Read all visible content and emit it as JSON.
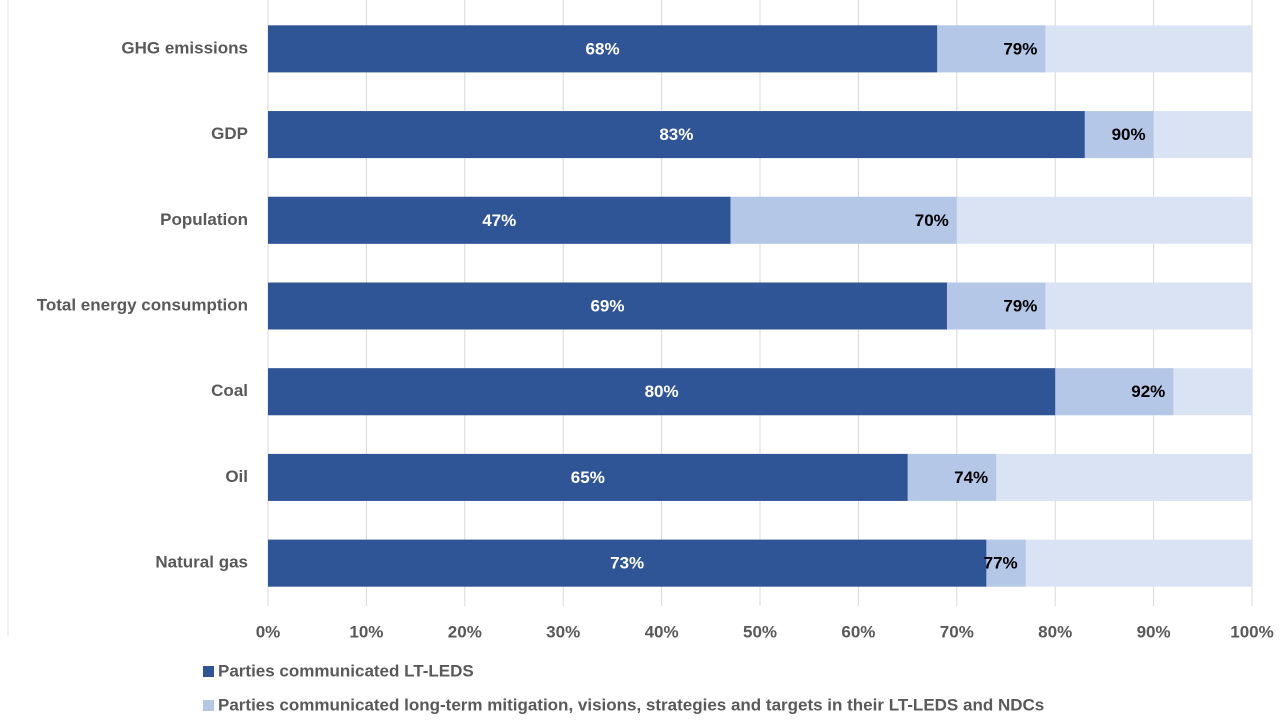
{
  "chart_data": {
    "type": "overlapped-bar",
    "orientation": "horizontal",
    "categories": [
      "GHG emissions",
      "GDP",
      "Population",
      "Total energy consumption",
      "Coal",
      "Oil",
      "Natural gas"
    ],
    "series": [
      {
        "name": "Parties communicated long-term mitigation, visions, strategies and targets in their LT-LEDS and NDCs",
        "color": "#b4c7e7",
        "label_color": "#000000",
        "values": [
          79,
          90,
          70,
          79,
          92,
          74,
          77
        ],
        "value_labels": [
          "79%",
          "90%",
          "70%",
          "79%",
          "92%",
          "74%",
          "77%"
        ]
      },
      {
        "name": "Parties communicated LT-LEDS",
        "color": "#2f5597",
        "label_color": "#ffffff",
        "values": [
          68,
          83,
          47,
          69,
          80,
          65,
          73
        ],
        "value_labels": [
          "68%",
          "83%",
          "47%",
          "69%",
          "80%",
          "65%",
          "73%"
        ]
      }
    ],
    "legend_order": [
      1,
      0
    ],
    "track_color": "#dae3f3",
    "xlim": [
      0,
      100
    ],
    "xticks": [
      {
        "value": 0,
        "label": "0%"
      },
      {
        "value": 10,
        "label": "10%"
      },
      {
        "value": 20,
        "label": "20%"
      },
      {
        "value": 30,
        "label": "30%"
      },
      {
        "value": 40,
        "label": "40%"
      },
      {
        "value": 50,
        "label": "50%"
      },
      {
        "value": 60,
        "label": "60%"
      },
      {
        "value": 70,
        "label": "70%"
      },
      {
        "value": 80,
        "label": "80%"
      },
      {
        "value": 90,
        "label": "90%"
      },
      {
        "value": 100,
        "label": "100%"
      }
    ],
    "grid": true,
    "legend": "bottom"
  }
}
